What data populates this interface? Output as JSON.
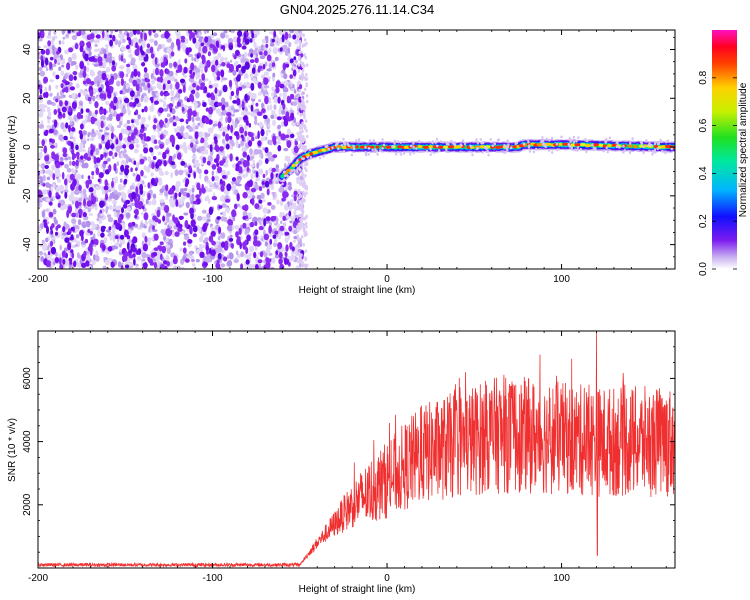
{
  "page_title": "GN04.2025.276.11.14.C34",
  "chart_data": [
    {
      "type": "heatmap",
      "title": "GN04.2025.276.11.14.C34",
      "xlabel": "Height of straight line (km)",
      "ylabel": "Frequency (Hz)",
      "xlim": [
        -200,
        165
      ],
      "ylim": [
        -50,
        48
      ],
      "xticks": [
        -200,
        -100,
        0,
        100
      ],
      "yticks": [
        -40,
        -20,
        0,
        20,
        40
      ],
      "noise_region_x": [
        -200,
        -48
      ],
      "signal_track": [
        {
          "x": -60,
          "y": -12
        },
        {
          "x": -55,
          "y": -9
        },
        {
          "x": -50,
          "y": -5
        },
        {
          "x": -45,
          "y": -3
        },
        {
          "x": -40,
          "y": -2
        },
        {
          "x": -30,
          "y": 0
        },
        {
          "x": 0,
          "y": 0
        },
        {
          "x": 50,
          "y": 0
        },
        {
          "x": 75,
          "y": 0
        },
        {
          "x": 78,
          "y": 1
        },
        {
          "x": 100,
          "y": 1
        },
        {
          "x": 165,
          "y": 0
        }
      ],
      "colorbar": {
        "label": "Normalized spectral amplitude",
        "range": [
          0.0,
          1.0
        ],
        "ticks": [
          0.0,
          0.2,
          0.4,
          0.6,
          0.8
        ],
        "tick_labels": [
          "0.0",
          "0.2",
          "0.4",
          "0.6",
          "0.8"
        ]
      }
    },
    {
      "type": "line",
      "xlabel": "Height of straight line (km)",
      "ylabel": "SNR (10 * v/v)",
      "xlim": [
        -200,
        165
      ],
      "ylim": [
        0,
        7500
      ],
      "xticks": [
        -200,
        -100,
        0,
        100
      ],
      "yticks": [
        2000,
        4000,
        6000
      ],
      "color": "#f03030",
      "envelope": [
        {
          "x": -200,
          "y": 100
        },
        {
          "x": -50,
          "y": 100
        },
        {
          "x": -40,
          "y": 800
        },
        {
          "x": -20,
          "y": 2000
        },
        {
          "x": 0,
          "y": 2800
        },
        {
          "x": 20,
          "y": 3600
        },
        {
          "x": 40,
          "y": 3900
        },
        {
          "x": 60,
          "y": 4200
        },
        {
          "x": 80,
          "y": 4200
        },
        {
          "x": 100,
          "y": 4100
        },
        {
          "x": 120,
          "y": 4000
        },
        {
          "x": 140,
          "y": 4000
        },
        {
          "x": 165,
          "y": 4000
        }
      ],
      "spikes": [
        {
          "x": 45,
          "y": 6200
        },
        {
          "x": 57,
          "y": 5800
        },
        {
          "x": 76,
          "y": 5500
        },
        {
          "x": 113,
          "y": 5700
        },
        {
          "x": 120,
          "y": 7500
        },
        {
          "x": 120.5,
          "y": 400
        },
        {
          "x": 162,
          "y": 5000
        }
      ]
    }
  ]
}
